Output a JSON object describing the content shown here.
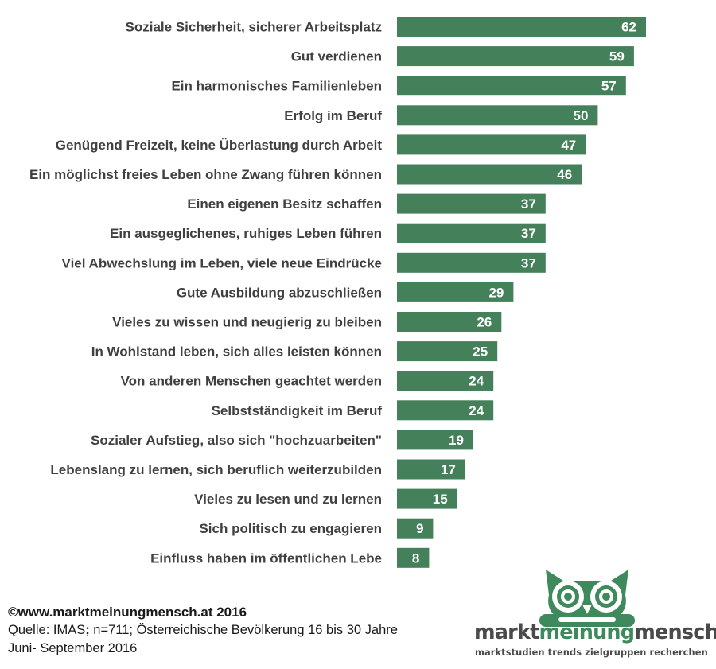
{
  "chart_data": {
    "type": "bar",
    "orientation": "horizontal",
    "categories": [
      "Soziale Sicherheit, sicherer Arbeitsplatz",
      "Gut verdienen",
      "Ein harmonisches Familienleben",
      "Erfolg im Beruf",
      "Genügend Freizeit, keine Überlastung durch Arbeit",
      "Ein möglichst freies Leben ohne Zwang führen können",
      "Einen eigenen Besitz schaffen",
      "Ein ausgeglichenes, ruhiges Leben führen",
      "Viel Abwechslung im Leben, viele neue Eindrücke",
      "Gute Ausbildung abzuschließen",
      "Vieles zu wissen und neugierig zu bleiben",
      "In Wohlstand leben, sich alles leisten können",
      "Von anderen Menschen geachtet werden",
      "Selbstständigkeit im Beruf",
      "Sozialer Aufstieg, also sich \"hochzuarbeiten\"",
      "Lebenslang zu lernen, sich beruflich weiterzubilden",
      "Vieles zu lesen und zu lernen",
      "Sich politisch zu engagieren",
      "Einfluss haben im öffentlichen Lebe"
    ],
    "values": [
      62,
      59,
      57,
      50,
      47,
      46,
      37,
      37,
      37,
      29,
      26,
      25,
      24,
      24,
      19,
      17,
      15,
      9,
      8
    ],
    "xlim": [
      0,
      62
    ],
    "bar_color": "#44805a",
    "value_label_color": "#ffffff",
    "category_label_color": "#404040",
    "grid": false,
    "legend": "none"
  },
  "footer": {
    "copyright": "©www.marktmeinungmensch.at 2016",
    "source_prefix": "Quelle: IMAS",
    "source_sep": ";",
    "source_rest": " n=711; Österreichische Bevölkerung 16 bis 30 Jahre",
    "period": "Juni- September 2016"
  },
  "logo": {
    "icon": "owl-icon",
    "word1": "markt",
    "word2": "meinung",
    "word3": "mensch",
    "tagline": "marktstudien trends zielgruppen recherchen",
    "accent_color": "#3f8a5c",
    "dark_color": "#4a4a4a"
  }
}
